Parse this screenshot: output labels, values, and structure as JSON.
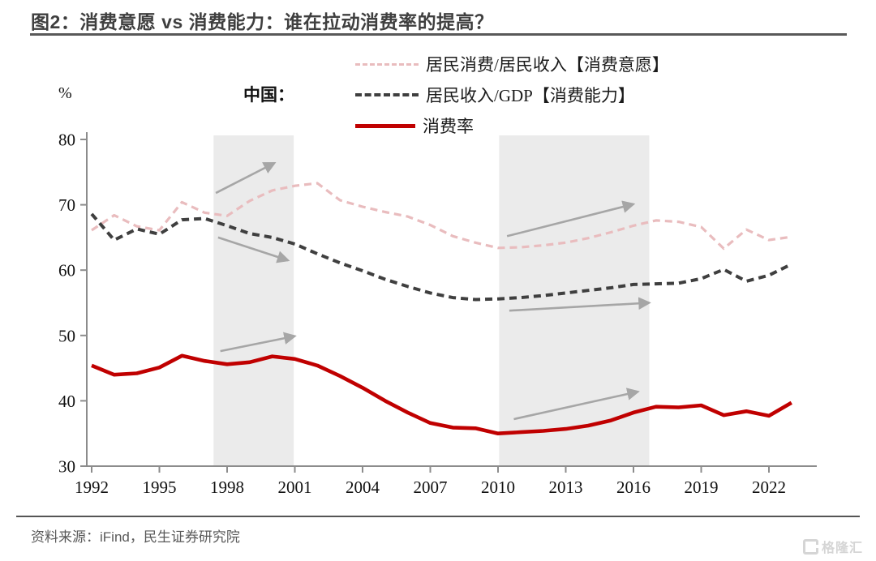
{
  "header": {
    "title": "图2：消费意愿 vs 消费能力：谁在拉动消费率的提高？"
  },
  "chart": {
    "unit_label": "%",
    "region_label": "中国：",
    "legend": [
      {
        "label": "居民消费/居民收入【消费意愿】"
      },
      {
        "label": "居民收入/GDP【消费能力】"
      },
      {
        "label": "消费率"
      }
    ]
  },
  "colors": {
    "willingness_line": "#e9bcbe",
    "ability_line": "#3f3f3f",
    "consumption_line": "#c00000",
    "shaded_band": "#ebebeb",
    "arrow": "#a6a6a6",
    "axis": "#8c8c8c",
    "title_text": "#3f3f3f",
    "source_text": "#595959"
  },
  "chart_data": {
    "type": "line",
    "title": "图2：消费意愿 vs 消费能力：谁在拉动消费率的提高？",
    "ylabel": "%",
    "ylim": [
      30,
      80
    ],
    "yticks": [
      30,
      40,
      50,
      60,
      70,
      80
    ],
    "xticks": [
      1992,
      1995,
      1998,
      2001,
      2004,
      2007,
      2010,
      2013,
      2016,
      2019,
      2022
    ],
    "grid": false,
    "legend_position": "top",
    "x": [
      1992,
      1993,
      1994,
      1995,
      1996,
      1997,
      1998,
      1999,
      2000,
      2001,
      2002,
      2003,
      2004,
      2005,
      2006,
      2007,
      2008,
      2009,
      2010,
      2011,
      2012,
      2013,
      2014,
      2015,
      2016,
      2017,
      2018,
      2019,
      2020,
      2021,
      2022,
      2023
    ],
    "series": [
      {
        "name": "居民消费/居民收入【消费意愿】",
        "style": "dashed",
        "color": "#e9bcbe",
        "values": [
          66.1,
          68.4,
          66.7,
          66.1,
          70.4,
          68.8,
          68.3,
          70.6,
          72.2,
          72.9,
          73.3,
          70.7,
          69.7,
          68.9,
          68.2,
          66.9,
          65.2,
          64.2,
          63.4,
          63.5,
          63.8,
          64.2,
          64.9,
          65.8,
          66.8,
          67.6,
          67.4,
          66.6,
          63.3,
          66.2,
          64.6,
          65.1
        ]
      },
      {
        "name": "居民收入/GDP【消费能力】",
        "style": "dashed",
        "color": "#3f3f3f",
        "values": [
          68.6,
          64.6,
          66.3,
          65.5,
          67.7,
          67.9,
          66.8,
          65.6,
          65.0,
          64.0,
          62.5,
          61.1,
          59.9,
          58.6,
          57.5,
          56.5,
          55.8,
          55.5,
          55.6,
          55.8,
          56.1,
          56.5,
          56.9,
          57.3,
          57.8,
          57.9,
          58.0,
          58.7,
          60.1,
          58.3,
          59.2,
          60.9
        ]
      },
      {
        "name": "消费率",
        "style": "solid",
        "color": "#c00000",
        "values": [
          45.4,
          44.0,
          44.2,
          45.1,
          46.9,
          46.1,
          45.6,
          45.9,
          46.8,
          46.4,
          45.4,
          43.8,
          42.0,
          40.0,
          38.2,
          36.6,
          35.9,
          35.8,
          35.0,
          35.2,
          35.4,
          35.7,
          36.2,
          37.0,
          38.2,
          39.1,
          39.0,
          39.3,
          37.8,
          38.4,
          37.7,
          39.7
        ]
      }
    ],
    "shaded_regions": [
      {
        "from": 1997.4,
        "to": 2000.95
      },
      {
        "from": 2010.05,
        "to": 2016.7
      }
    ],
    "arrows": [
      {
        "from": [
          1997.5,
          71.8
        ],
        "to": [
          2000.1,
          76.4
        ]
      },
      {
        "from": [
          1997.6,
          65.0
        ],
        "to": [
          2000.7,
          61.5
        ]
      },
      {
        "from": [
          1997.7,
          47.6
        ],
        "to": [
          2001.0,
          49.9
        ]
      },
      {
        "from": [
          2010.4,
          65.2
        ],
        "to": [
          2016.0,
          70.1
        ]
      },
      {
        "from": [
          2010.5,
          53.8
        ],
        "to": [
          2016.7,
          55.0
        ]
      },
      {
        "from": [
          2010.7,
          37.2
        ],
        "to": [
          2016.2,
          41.4
        ]
      }
    ]
  },
  "footer": {
    "source": "资料来源：iFind，民生证券研究院",
    "logo": "格隆汇"
  }
}
